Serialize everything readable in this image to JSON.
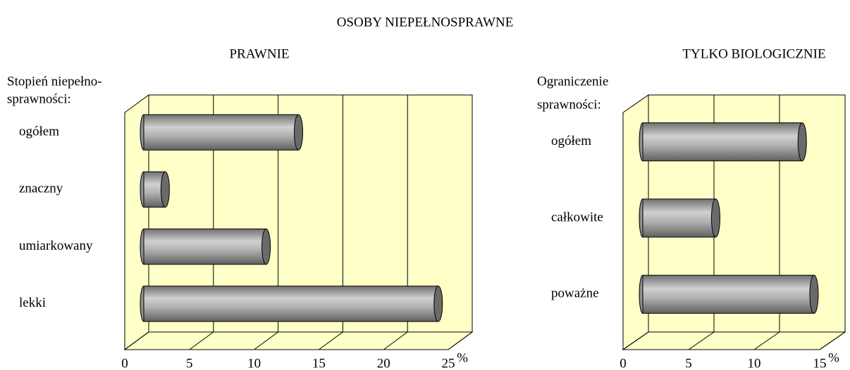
{
  "title": "OSOBY NIEPEŁNOSPRAWNE",
  "chart_data": [
    {
      "type": "bar",
      "orientation": "horizontal",
      "title": "PRAWNIE",
      "ylabel": [
        "Stopień niepełno-",
        "sprawności:"
      ],
      "xlabel": "%",
      "categories": [
        "ogółem",
        "znaczny",
        "umiarkowany",
        "lekki"
      ],
      "values": [
        12.5,
        2.2,
        10.0,
        23.3
      ],
      "color": "#a0a0a0",
      "xlim": [
        0,
        25
      ],
      "xticks": [
        0,
        5,
        10,
        15,
        20,
        25
      ],
      "grid": true
    },
    {
      "type": "bar",
      "orientation": "horizontal",
      "title": "TYLKO BIOLOGICZNIE",
      "ylabel": [
        "Ograniczenie",
        "sprawności:"
      ],
      "xlabel": "%",
      "categories": [
        "ogółem",
        "całkowite",
        "poważne"
      ],
      "values": [
        12.7,
        6.1,
        13.6
      ],
      "color": "#a0a0a0",
      "xlim": [
        0,
        15
      ],
      "xticks": [
        0,
        5,
        10,
        15
      ],
      "grid": true
    }
  ]
}
